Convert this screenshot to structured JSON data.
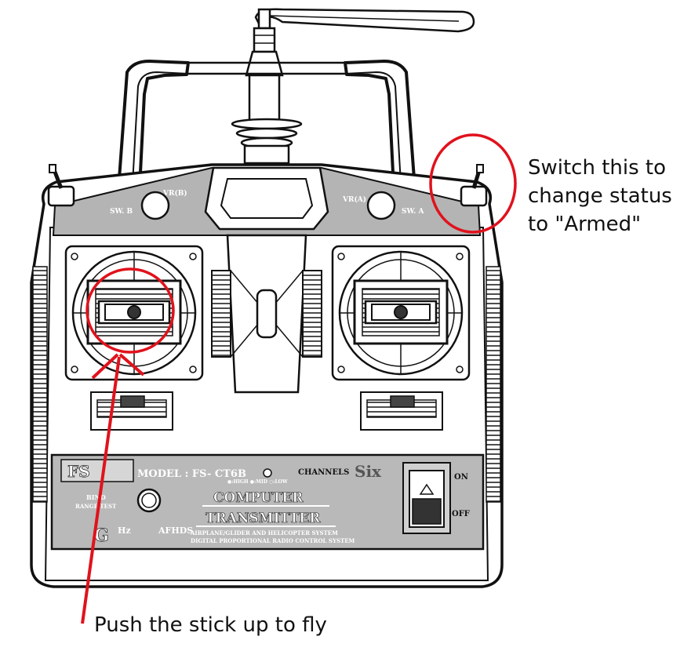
{
  "annotations": {
    "switch_note": [
      "Switch this to",
      "change status",
      "to \"Armed\""
    ],
    "stick_note": "Push the stick up to fly",
    "highlight_color": "#e0121c"
  },
  "transmitter": {
    "sw_b": "SW. B",
    "vr_b": "VR(B)",
    "vr_a": "VR(A)",
    "sw_a": "SW. A",
    "model": "MODEL : FS- CT6B",
    "channels_label": "CHANNELS",
    "channels_value": "Six",
    "high_low": "●:HIGH ●:MID ○:LOW",
    "on": "ON",
    "off": "OFF",
    "bind_label": "BIND",
    "range_test_label": "RANGE TEST",
    "computer": "COMPUTER",
    "transmitter_label": "TRANSMITTER",
    "system_line_1": "AIRPLANE/GLIDER AND HELICOPTER SYSTEM",
    "system_line_2": "DIGITAL PROPORTIONAL RADIO CONTROL SYSTEM",
    "afhds": "AFHDS",
    "hz": "Hz"
  }
}
